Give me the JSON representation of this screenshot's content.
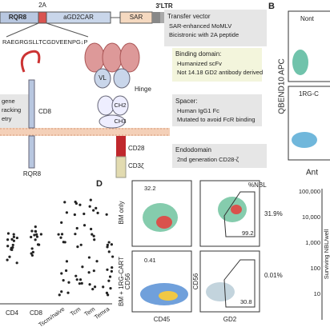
{
  "vector": {
    "tag_2a": "2A",
    "rqr8": "RQR8",
    "car": "aGD2CAR",
    "sar": "SAR",
    "ltr": "3'LTR",
    "sequence": "RAEGRGSLLTCGDVEENPG↓P"
  },
  "boxes": [
    {
      "title": "Transfer vector",
      "items": [
        "SAR-enhanced MoMLV",
        "Bicistronic with 2A peptide"
      ]
    },
    {
      "title": "Binding domain:",
      "items": [
        "Humanized scFv",
        "Not 14.18 GD2 antibody derived"
      ]
    },
    {
      "title": "Spacer:",
      "items": [
        "Human IgG1 Fc",
        "Mutated to avoid FcR binding"
      ]
    },
    {
      "title": "Endodomain",
      "items": [
        "2nd generation CD28-ζ"
      ]
    }
  ],
  "construct": {
    "vl": "VL",
    "hinge": "Hinge",
    "ch2": "CH2",
    "ch3": "CH3",
    "cd8": "CD8",
    "rqr8": "RQR8",
    "cd28": "CD28",
    "cd3z": "CD3ζ"
  },
  "left_box": [
    "gene",
    "racking",
    "etry"
  ],
  "panel_b": {
    "label": "B",
    "top": "Nont",
    "bottom": "1RG-C",
    "y_axis": "QBEND10 APC",
    "x_axis": "Ant"
  },
  "scatter": {
    "categories": [
      "CD4",
      "CD8",
      "Tscm/naive",
      "Tcm",
      "Tem",
      "Temra"
    ]
  },
  "panel_d": {
    "label": "D",
    "pct_header": "%NBL",
    "row1": "BM only",
    "row2": "BM + 1RG-CART",
    "g1": "32.2",
    "g2": "0.41",
    "g3": "99.2",
    "g4": "30.8",
    "pct1": "31.9%",
    "pct2": "0.01%",
    "x1": "CD45",
    "x2": "GD2",
    "y1": "CD56",
    "y2": "CD56"
  },
  "survival": {
    "y_label": "Surviving NBL/well",
    "yticks": [
      "100,000",
      "10,000",
      "1,000",
      "100",
      "10"
    ]
  }
}
